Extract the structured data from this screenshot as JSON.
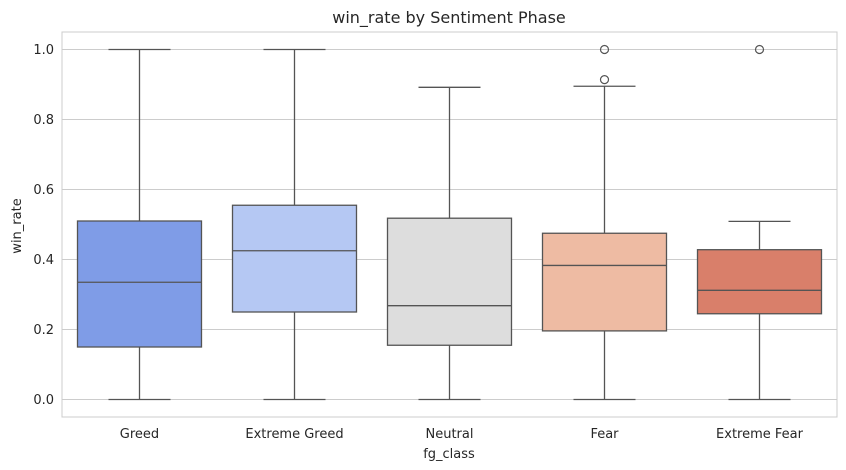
{
  "chart_data": {
    "type": "boxplot",
    "title": "win_rate by Sentiment Phase",
    "xlabel": "fg_class",
    "ylabel": "win_rate",
    "ylim": [
      -0.05,
      1.05
    ],
    "yticks": [
      "0.0",
      "0.2",
      "0.4",
      "0.6",
      "0.8",
      "1.0"
    ],
    "grid": true,
    "categories": [
      "Greed",
      "Extreme Greed",
      "Neutral",
      "Fear",
      "Extreme Fear"
    ],
    "boxes": [
      {
        "category": "Greed",
        "min": 0.0,
        "q1": 0.15,
        "median": 0.335,
        "q3": 0.51,
        "max": 1.0,
        "outliers": [],
        "color": "#7f9ce7"
      },
      {
        "category": "Extreme Greed",
        "min": 0.0,
        "q1": 0.25,
        "median": 0.425,
        "q3": 0.555,
        "max": 1.0,
        "outliers": [],
        "color": "#b5c8f3"
      },
      {
        "category": "Neutral",
        "min": 0.0,
        "q1": 0.155,
        "median": 0.268,
        "q3": 0.518,
        "max": 0.892,
        "outliers": [],
        "color": "#dddddd"
      },
      {
        "category": "Fear",
        "min": 0.0,
        "q1": 0.196,
        "median": 0.383,
        "q3": 0.475,
        "max": 0.895,
        "outliers": [
          0.914,
          1.0
        ],
        "color": "#eebba3"
      },
      {
        "category": "Extreme Fear",
        "min": 0.0,
        "q1": 0.245,
        "median": 0.312,
        "q3": 0.428,
        "max": 0.509,
        "outliers": [
          1.0
        ],
        "color": "#d97f6a"
      }
    ]
  }
}
